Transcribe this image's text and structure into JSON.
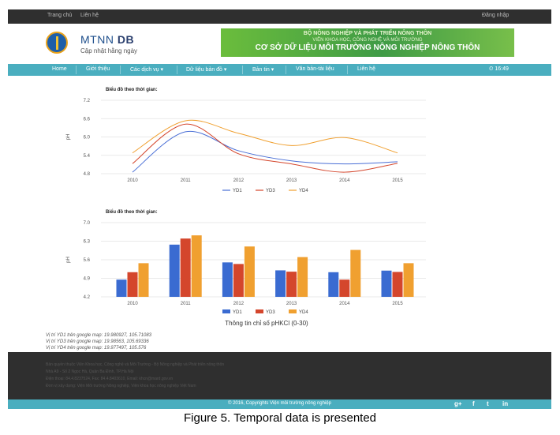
{
  "topbar": {
    "home": "Trang chủ",
    "contact": "Liên hệ",
    "login": "Đăng nhập"
  },
  "header": {
    "brand_main": "MTNN",
    "brand_bold": "DB",
    "brand_sub": "Cập nhật hằng ngày",
    "banner_line1": "BỘ NÔNG NGHIỆP VÀ PHÁT TRIỂN NÔNG THÔN",
    "banner_line2": "VIỆN KHOA HỌC, CÔNG NGHỆ VÀ MÔI TRƯỜNG",
    "banner_line3": "CƠ SỞ DỮ LIỆU MÔI TRƯỜNG NÔNG NGHIỆP NÔNG THÔN"
  },
  "nav": {
    "items": [
      "Home",
      "Giới thiệu",
      "Các dịch vụ ▾",
      "Dữ liệu bản đồ ▾",
      "Bản tin ▾",
      "Văn bản-tài liệu",
      "Liên hệ"
    ],
    "clock": "⏲ 16:49"
  },
  "chart_data": [
    {
      "type": "line",
      "title": "Biểu đồ theo thời gian:",
      "ylabel": "pH",
      "categories": [
        "2010",
        "2011",
        "2012",
        "2013",
        "2014",
        "2015"
      ],
      "yticks": [
        "7.2",
        "6.6",
        "6.0",
        "5.4",
        "4.8"
      ],
      "ylim": [
        4.8,
        7.2
      ],
      "grid": true,
      "legend": "bottom",
      "series": [
        {
          "name": "YD1",
          "color": "#4a6fd6",
          "values": [
            4.85,
            6.17,
            5.55,
            5.22,
            5.12,
            5.19
          ]
        },
        {
          "name": "YD3",
          "color": "#d4462c",
          "values": [
            5.13,
            6.42,
            5.45,
            5.12,
            4.85,
            5.14
          ]
        },
        {
          "name": "YD4",
          "color": "#f0a030",
          "values": [
            5.48,
            6.53,
            6.12,
            5.72,
            5.98,
            5.48
          ]
        }
      ]
    },
    {
      "type": "bar",
      "title": "Biểu đồ theo thời gian:",
      "ylabel": "pH",
      "xlabel": "Thông tin chỉ số pHKCl (0-30)",
      "categories": [
        "2010",
        "2011",
        "2012",
        "2013",
        "2014",
        "2015"
      ],
      "yticks": [
        "7.0",
        "6.3",
        "5.6",
        "4.9",
        "4.2"
      ],
      "ylim": [
        4.2,
        7.0
      ],
      "grid": true,
      "legend": "bottom",
      "series": [
        {
          "name": "YD1",
          "color": "#3a6bd1",
          "values": [
            4.85,
            6.17,
            5.5,
            5.2,
            5.13,
            5.19
          ]
        },
        {
          "name": "YD3",
          "color": "#d4462c",
          "values": [
            5.13,
            6.4,
            5.44,
            5.15,
            4.85,
            5.14
          ]
        },
        {
          "name": "YD4",
          "color": "#f0a030",
          "values": [
            5.47,
            6.52,
            6.1,
            5.7,
            5.97,
            5.47
          ]
        }
      ]
    }
  ],
  "coords": [
    "Vị trí YD1 trên google map: 19.980927, 105.71083",
    "Vị trí YD3 trên google map: 19.98563, 105.69336",
    "Vị trí YD4 trên google map: 19.977497, 105.576"
  ],
  "footer": {
    "lines": [
      "Bản quyền thuộc Viện Khoa học, Công nghệ và Môi Trường - Bộ Nông nghiệp và Phát triển nông thôn",
      "Nhà A9 - Số 2 Ngọc Hà, Quận Ba Đình, TP.Hà Nội",
      "Điện thoại: 84.4.8237524, Fax: 84.4.8403610, Email: khcn@mard.gov.vn",
      "Đơn vị xây dựng: Viện Môi trường Nông nghiệp, Viện khoa học nông nghiệp Việt Nam"
    ],
    "copyright": "© 2016, Copyrights Viện môi trường nông nghiệp",
    "social": [
      "g+",
      "f",
      "t",
      "in"
    ]
  },
  "caption": "Figure 5. Temporal data is presented"
}
